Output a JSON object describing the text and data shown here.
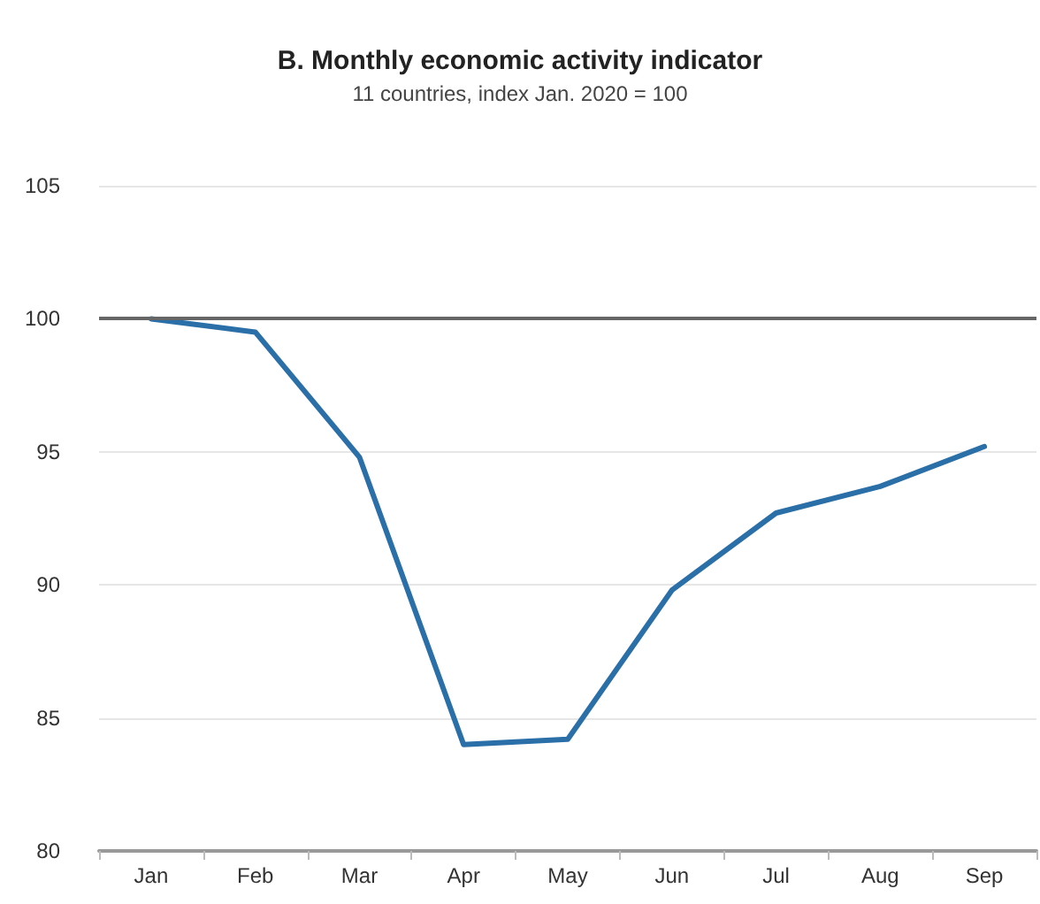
{
  "chart_data": {
    "type": "line",
    "title": "B. Monthly economic activity indicator",
    "subtitle": "11 countries, index Jan. 2020 = 100",
    "categories": [
      "Jan",
      "Feb",
      "Mar",
      "Apr",
      "May",
      "Jun",
      "Jul",
      "Aug",
      "Sep"
    ],
    "series": [
      {
        "color": "#2a6fa8",
        "values": [
          100,
          99.5,
          94.8,
          84.0,
          84.2,
          89.8,
          92.7,
          93.7,
          95.2
        ]
      }
    ],
    "ylim": [
      80,
      105
    ],
    "yticks": [
      80,
      85,
      90,
      95,
      100,
      105
    ],
    "grid": "y",
    "marker": "none",
    "line_style": "solid",
    "ref_lines": [
      {
        "axis": "y",
        "value": 100,
        "color": "#666666"
      }
    ]
  }
}
